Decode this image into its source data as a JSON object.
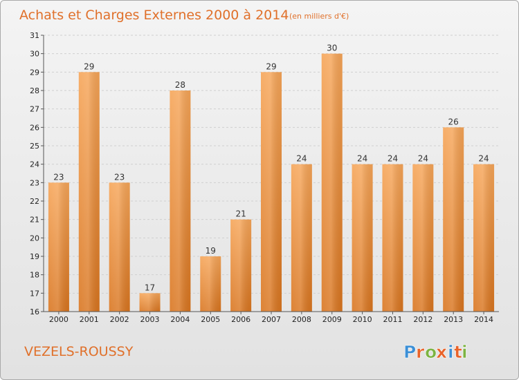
{
  "chart_data": {
    "type": "bar",
    "title": "Achats et Charges Externes 2000 à 2014",
    "unit": "(en milliers d'€)",
    "place": "VEZELS-ROUSSY",
    "categories": [
      "2000",
      "2001",
      "2002",
      "2003",
      "2004",
      "2005",
      "2006",
      "2007",
      "2008",
      "2009",
      "2010",
      "2011",
      "2012",
      "2013",
      "2014"
    ],
    "values": [
      23,
      29,
      23,
      17,
      28,
      19,
      21,
      29,
      24,
      30,
      24,
      24,
      24,
      26,
      24
    ],
    "ylim": [
      16,
      31
    ],
    "yticks": [
      16,
      17,
      18,
      19,
      20,
      21,
      22,
      23,
      24,
      25,
      26,
      27,
      28,
      29,
      30,
      31
    ],
    "grid": true,
    "bar_color": "#f0913a",
    "bar_color_light": "#f6a558",
    "bar_color_dark": "#d9751f",
    "title_color": "#e0702a"
  },
  "logo": {
    "text": "Proxiti",
    "letter_colors": [
      "#3b8fd6",
      "#e8632a",
      "#7cb342",
      "#e8632a",
      "#3b8fd6",
      "#e8632a",
      "#7cb342"
    ]
  }
}
